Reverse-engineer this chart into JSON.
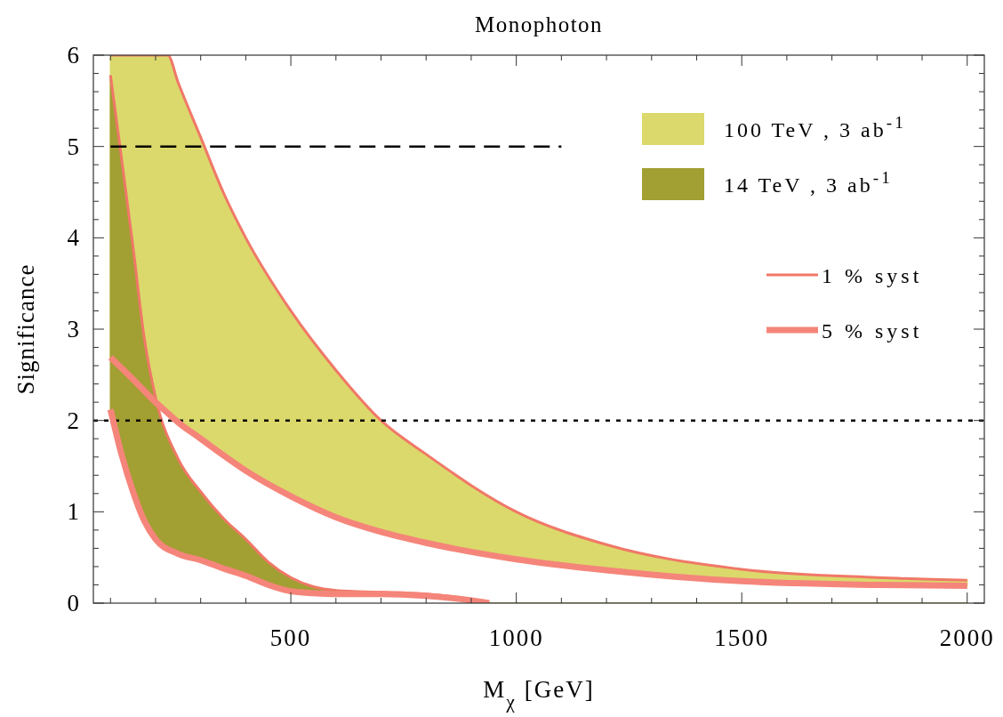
{
  "chart_data": {
    "type": "line",
    "title": "Monophoton",
    "xlabel": "M$_{χ}$  [GeV]",
    "ylabel": "Significance",
    "xlim": [
      62,
      2038
    ],
    "ylim": [
      0,
      6
    ],
    "xticks": [
      {
        "value": 100,
        "label": null
      },
      {
        "value": 200,
        "label": null
      },
      {
        "value": 300,
        "label": null
      },
      {
        "value": 400,
        "label": null
      },
      500,
      {
        "value": 600,
        "label": null
      },
      {
        "value": 700,
        "label": null
      },
      {
        "value": 800,
        "label": null
      },
      {
        "value": 900,
        "label": null
      },
      1000,
      {
        "value": 1100,
        "label": null
      },
      {
        "value": 1200,
        "label": null
      },
      {
        "value": 1300,
        "label": null
      },
      {
        "value": 1400,
        "label": null
      },
      1500,
      {
        "value": 1600,
        "label": null
      },
      {
        "value": 1700,
        "label": null
      },
      {
        "value": 1800,
        "label": null
      },
      {
        "value": 1900,
        "label": null
      },
      2000
    ],
    "yticks": [
      0,
      {
        "value": 0.2,
        "label": null
      },
      {
        "value": 0.4,
        "label": null
      },
      {
        "value": 0.6,
        "label": null
      },
      {
        "value": 0.8,
        "label": null
      },
      1,
      {
        "value": 1.2,
        "label": null
      },
      {
        "value": 1.4,
        "label": null
      },
      {
        "value": 1.6,
        "label": null
      },
      {
        "value": 1.8,
        "label": null
      },
      2,
      {
        "value": 2.2,
        "label": null
      },
      {
        "value": 2.4,
        "label": null
      },
      {
        "value": 2.6,
        "label": null
      },
      {
        "value": 2.8,
        "label": null
      },
      3,
      {
        "value": 3.2,
        "label": null
      },
      {
        "value": 3.4,
        "label": null
      },
      {
        "value": 3.6,
        "label": null
      },
      {
        "value": 3.8,
        "label": null
      },
      4,
      {
        "value": 4.2,
        "label": null
      },
      {
        "value": 4.4,
        "label": null
      },
      {
        "value": 4.6,
        "label": null
      },
      {
        "value": 4.8,
        "label": null
      },
      5,
      {
        "value": 5.2,
        "label": null
      },
      {
        "value": 5.4,
        "label": null
      },
      {
        "value": 5.6,
        "label": null
      },
      {
        "value": 5.8,
        "label": null
      },
      6
    ],
    "grid": false,
    "legend": "top right",
    "annotations": [
      "1 % syst"
    ],
    "ref_lines": [
      {
        "axis": "y",
        "value": 2,
        "color": "#000000",
        "line_style": "dotted"
      }
    ],
    "series": [
      {
        "name": "100 TeV , 3 ab$^{-1}$",
        "type": "area",
        "color": "#dbd96b",
        "x": [
          100,
          150,
          200,
          227,
          250,
          300,
          350,
          400,
          500,
          600,
          700,
          800,
          1000,
          1200,
          1500,
          1800,
          2000
        ],
        "values": [
          6,
          6,
          6,
          6,
          5.7,
          5.1,
          4.5,
          4.0,
          3.2,
          2.55,
          2.0,
          1.63,
          1.0,
          0.64,
          0.37,
          0.28,
          0.25
        ]
      },
      {
        "name": "14 TeV , 3 ab$^{-1}$",
        "type": "area",
        "color": "#a29f33",
        "x": [
          100,
          125,
          150,
          175,
          200,
          250,
          300,
          350,
          400,
          450,
          500,
          550,
          600,
          700,
          800,
          900,
          940,
          1000,
          1500,
          2000
        ],
        "values": [
          5.78,
          4.85,
          3.9,
          2.9,
          2.25,
          1.58,
          1.22,
          0.93,
          0.7,
          0.45,
          0.28,
          0.18,
          0.14,
          0.12,
          0.1,
          0.04,
          0,
          0,
          0,
          0
        ]
      },
      {
        "type": "line",
        "color": "#000000",
        "line_style": "dashed",
        "x": [
          100,
          1100
        ],
        "values": [
          5,
          5
        ]
      },
      {
        "name": "5 % syst",
        "type": "line",
        "color": "#f5857a",
        "x": [
          100,
          150,
          200,
          227,
          250,
          300,
          350,
          400,
          500,
          600,
          700,
          800,
          1000,
          1200,
          1500,
          1800,
          2000
        ],
        "values": [
          2.69,
          2.45,
          2.2,
          2.08,
          1.98,
          1.8,
          1.62,
          1.45,
          1.17,
          0.94,
          0.78,
          0.66,
          0.48,
          0.36,
          0.24,
          0.2,
          0.19
        ]
      },
      {
        "color": "#f5857a",
        "x": [
          100,
          125,
          150,
          175,
          200,
          250,
          300,
          350,
          400,
          450,
          500,
          550,
          600,
          700,
          800,
          900,
          940
        ],
        "values": [
          2.12,
          1.62,
          1.22,
          0.9,
          0.7,
          0.54,
          0.47,
          0.38,
          0.3,
          0.2,
          0.13,
          0.11,
          0.1,
          0.1,
          0.08,
          0.03,
          0
        ]
      }
    ]
  }
}
